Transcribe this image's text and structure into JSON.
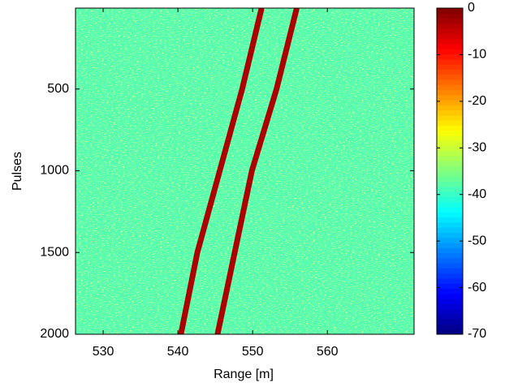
{
  "chart_data": {
    "type": "heatmap",
    "xlabel": "Range [m]",
    "ylabel": "Pulses",
    "xlim": [
      526.3,
      571.6
    ],
    "xticks": [
      530,
      540,
      550,
      560
    ],
    "ylim": [
      5,
      2000
    ],
    "y_reversed": true,
    "yticks": [
      500,
      1000,
      1500,
      2000
    ],
    "colormap": "jet",
    "clim": [
      -70,
      0
    ],
    "cticks": [
      -70,
      -60,
      -50,
      -40,
      -30,
      -20,
      -10,
      0
    ],
    "background_level": -38,
    "traces": [
      {
        "range": [
          551.2,
          548.6,
          545.6,
          542.6,
          540.4
        ],
        "pulses": [
          5,
          500,
          1000,
          1500,
          2000
        ],
        "level": -3
      },
      {
        "range": [
          555.9,
          553.2,
          549.9,
          547.6,
          545.3
        ],
        "pulses": [
          5,
          500,
          1000,
          1500,
          2000
        ],
        "level": -3
      }
    ]
  }
}
